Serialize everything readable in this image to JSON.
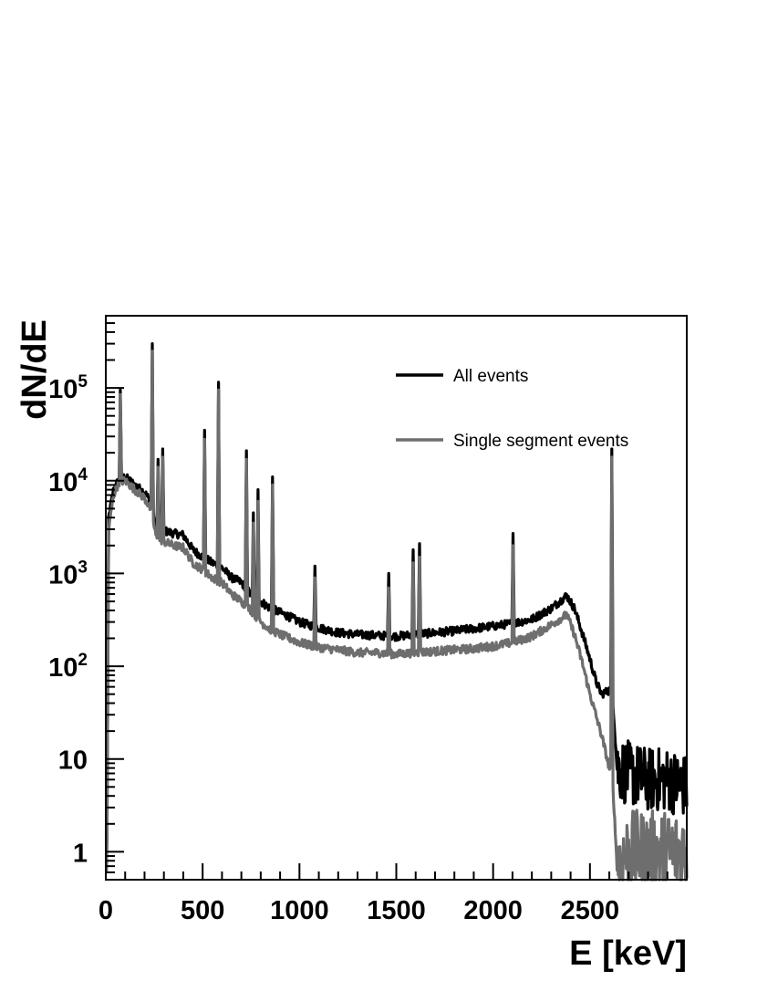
{
  "chart_data": {
    "type": "line",
    "title": "",
    "xlabel": "E [keV]",
    "ylabel": "dN/dE",
    "xlim": [
      0,
      3000
    ],
    "ylim": [
      0.5,
      600000
    ],
    "yscale": "log",
    "grid": false,
    "legend_position": "top-right",
    "x_ticks": [
      {
        "value": 0,
        "label": "0"
      },
      {
        "value": 500,
        "label": "500"
      },
      {
        "value": 1000,
        "label": "1000"
      },
      {
        "value": 1500,
        "label": "1500"
      },
      {
        "value": 2000,
        "label": "2000"
      },
      {
        "value": 2500,
        "label": "2500"
      }
    ],
    "y_ticks": [
      {
        "value": 1,
        "label": "1",
        "exp": ""
      },
      {
        "value": 10,
        "label": "10",
        "exp": ""
      },
      {
        "value": 100,
        "label": "10",
        "exp": "2"
      },
      {
        "value": 1000,
        "label": "10",
        "exp": "3"
      },
      {
        "value": 10000,
        "label": "10",
        "exp": "4"
      },
      {
        "value": 100000,
        "label": "10",
        "exp": "5"
      }
    ],
    "series": [
      {
        "name": "All events",
        "color": "#000000",
        "baseline": [
          [
            5,
            0.6
          ],
          [
            15,
            4000
          ],
          [
            40,
            8000
          ],
          [
            70,
            10500
          ],
          [
            100,
            11000
          ],
          [
            150,
            9000
          ],
          [
            200,
            7500
          ],
          [
            230,
            6000
          ],
          [
            260,
            3200
          ],
          [
            300,
            2900
          ],
          [
            350,
            2700
          ],
          [
            400,
            2600
          ],
          [
            450,
            1800
          ],
          [
            500,
            1500
          ],
          [
            550,
            1300
          ],
          [
            600,
            1150
          ],
          [
            650,
            900
          ],
          [
            700,
            800
          ],
          [
            750,
            600
          ],
          [
            800,
            500
          ],
          [
            850,
            420
          ],
          [
            900,
            380
          ],
          [
            950,
            340
          ],
          [
            1000,
            300
          ],
          [
            1100,
            260
          ],
          [
            1200,
            230
          ],
          [
            1300,
            220
          ],
          [
            1400,
            215
          ],
          [
            1500,
            210
          ],
          [
            1600,
            220
          ],
          [
            1700,
            230
          ],
          [
            1800,
            240
          ],
          [
            1900,
            255
          ],
          [
            2000,
            270
          ],
          [
            2100,
            290
          ],
          [
            2200,
            320
          ],
          [
            2300,
            420
          ],
          [
            2380,
            580
          ],
          [
            2420,
            420
          ],
          [
            2460,
            230
          ],
          [
            2500,
            120
          ],
          [
            2530,
            70
          ],
          [
            2560,
            50
          ],
          [
            2600,
            55
          ],
          [
            2614,
            60
          ],
          [
            2640,
            8
          ],
          [
            2700,
            7
          ],
          [
            2800,
            6
          ],
          [
            2900,
            6
          ],
          [
            3000,
            5
          ]
        ],
        "peaks": [
          [
            75,
            95000
          ],
          [
            239,
            300000
          ],
          [
            270,
            17000
          ],
          [
            295,
            22000
          ],
          [
            511,
            35000
          ],
          [
            583,
            115000
          ],
          [
            727,
            21000
          ],
          [
            763,
            4500
          ],
          [
            785,
            8000
          ],
          [
            860,
            11000
          ],
          [
            1079,
            1200
          ],
          [
            1460,
            1000
          ],
          [
            1588,
            1800
          ],
          [
            1620,
            2100
          ],
          [
            2104,
            2700
          ],
          [
            2614,
            22000
          ]
        ]
      },
      {
        "name": "Single segment events",
        "color": "#6e6e6e",
        "baseline": [
          [
            5,
            0.6
          ],
          [
            15,
            3000
          ],
          [
            40,
            7000
          ],
          [
            70,
            9800
          ],
          [
            100,
            10000
          ],
          [
            150,
            8000
          ],
          [
            200,
            6500
          ],
          [
            230,
            5000
          ],
          [
            260,
            2500
          ],
          [
            300,
            2200
          ],
          [
            350,
            2000
          ],
          [
            400,
            1900
          ],
          [
            450,
            1300
          ],
          [
            500,
            1100
          ],
          [
            550,
            900
          ],
          [
            600,
            800
          ],
          [
            650,
            600
          ],
          [
            700,
            500
          ],
          [
            750,
            400
          ],
          [
            800,
            300
          ],
          [
            850,
            250
          ],
          [
            900,
            220
          ],
          [
            950,
            200
          ],
          [
            1000,
            180
          ],
          [
            1100,
            160
          ],
          [
            1200,
            150
          ],
          [
            1300,
            140
          ],
          [
            1400,
            140
          ],
          [
            1500,
            135
          ],
          [
            1600,
            140
          ],
          [
            1700,
            145
          ],
          [
            1800,
            150
          ],
          [
            1900,
            155
          ],
          [
            2000,
            165
          ],
          [
            2100,
            180
          ],
          [
            2200,
            210
          ],
          [
            2300,
            280
          ],
          [
            2380,
            360
          ],
          [
            2420,
            220
          ],
          [
            2460,
            110
          ],
          [
            2500,
            50
          ],
          [
            2530,
            30
          ],
          [
            2560,
            18
          ],
          [
            2600,
            8
          ],
          [
            2614,
            8
          ],
          [
            2640,
            0.7
          ],
          [
            2700,
            1
          ],
          [
            2800,
            1
          ],
          [
            2900,
            1
          ],
          [
            3000,
            1
          ]
        ],
        "peaks": [
          [
            75,
            85000
          ],
          [
            239,
            250000
          ],
          [
            270,
            14000
          ],
          [
            295,
            18000
          ],
          [
            511,
            28000
          ],
          [
            583,
            95000
          ],
          [
            727,
            17000
          ],
          [
            763,
            3500
          ],
          [
            785,
            6000
          ],
          [
            860,
            9000
          ],
          [
            1079,
            900
          ],
          [
            1460,
            700
          ],
          [
            1588,
            1300
          ],
          [
            1620,
            1500
          ],
          [
            2104,
            2000
          ],
          [
            2614,
            18000
          ]
        ]
      }
    ]
  }
}
